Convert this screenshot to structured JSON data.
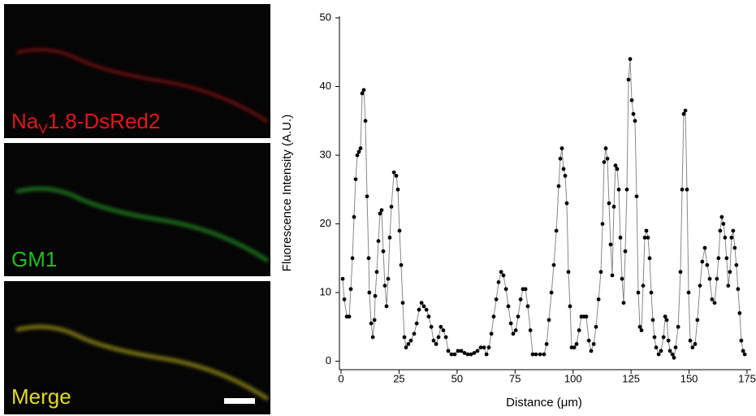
{
  "panels": [
    {
      "label_parts": [
        "Na",
        "V",
        "1.8-DsRed2"
      ],
      "color": "#e4161c"
    },
    {
      "label_parts": [
        "GM1"
      ],
      "color": "#1fbf1f"
    },
    {
      "label_parts": [
        "Merge"
      ],
      "color": "#e2dc1e"
    }
  ],
  "chart_data": {
    "type": "line",
    "x_label": "Distance (μm)",
    "y_label": "Fluorescence Intensity (A.U.)",
    "xlim": [
      0,
      175
    ],
    "ylim": [
      -1,
      50
    ],
    "xticks": [
      0,
      25,
      50,
      75,
      100,
      125,
      150,
      175
    ],
    "yticks": [
      0,
      10,
      20,
      30,
      40,
      50
    ],
    "line_color": "#888888",
    "marker_color": "#000000",
    "x": [
      0.7,
      1.4,
      2.5,
      3.5,
      4.2,
      4.9,
      5.6,
      6.3,
      7,
      7.7,
      8.4,
      9.1,
      9.8,
      10.5,
      11.2,
      11.9,
      12.2,
      13,
      13.7,
      14.4,
      14.7,
      15.4,
      16.1,
      16.8,
      17.5,
      18.2,
      18.9,
      19.6,
      20.3,
      21,
      21.7,
      22.8,
      23.8,
      24.5,
      25.2,
      25.9,
      26.6,
      27.3,
      28,
      29,
      30.1,
      31.5,
      32.6,
      33.6,
      34.7,
      35.7,
      36.8,
      37.8,
      38.9,
      39.9,
      41,
      42,
      43,
      44.1,
      45.2,
      46.2,
      47.6,
      49,
      50.4,
      51.8,
      53.2,
      54.6,
      56,
      57.4,
      58.8,
      60.2,
      61.6,
      62.7,
      63.7,
      64.8,
      65.8,
      66.9,
      67.9,
      69,
      70,
      71.1,
      72.1,
      73.2,
      74.2,
      75.3,
      76.3,
      77.4,
      78.4,
      79.5,
      80.5,
      81.6,
      82.6,
      84,
      85.8,
      87.5,
      88.6,
      89.6,
      90.7,
      91.7,
      92.8,
      93.8,
      94.5,
      95.2,
      95.9,
      96.6,
      97.3,
      98,
      98.7,
      99.4,
      100.5,
      101.5,
      102.6,
      103.6,
      104.7,
      105.7,
      106.8,
      107.8,
      108.9,
      109.9,
      111,
      112,
      112.7,
      113.4,
      114.1,
      114.8,
      115.5,
      116.2,
      116.9,
      117.6,
      118.3,
      119,
      119.7,
      120.4,
      121.1,
      121.8,
      122.5,
      123.2,
      123.9,
      124.6,
      125.3,
      126,
      126.7,
      127.4,
      128.1,
      128.8,
      129.5,
      130.2,
      130.9,
      131.6,
      132.3,
      133,
      133.7,
      134.4,
      135.1,
      135.8,
      136.9,
      137.9,
      139,
      139.7,
      140.4,
      141.1,
      141.8,
      142.8,
      143.5,
      144.2,
      145.3,
      146.3,
      147,
      147.7,
      148.4,
      149.1,
      149.8,
      150.5,
      151.5,
      152.6,
      153.6,
      154.7,
      155.7,
      156.8,
      157.8,
      158.9,
      159.9,
      161,
      162,
      162.7,
      163.4,
      164.1,
      164.8,
      165.5,
      166.2,
      166.9,
      167.6,
      168.3,
      169,
      169.7,
      170.4,
      171.1,
      171.8,
      172.5,
      173.3,
      174
    ],
    "values": [
      12,
      9,
      6.5,
      6.5,
      10.5,
      15,
      21,
      26.5,
      30,
      30.5,
      31,
      39,
      39.5,
      35,
      24,
      15,
      10,
      5.5,
      3.5,
      6,
      9.5,
      13,
      17.5,
      21.5,
      22,
      16,
      11,
      8,
      12,
      18,
      22.5,
      27.5,
      27,
      25,
      19,
      14,
      8.5,
      3.5,
      2,
      2.5,
      3,
      4,
      5.5,
      7.5,
      8.5,
      8,
      7.5,
      6.5,
      5,
      3,
      2.5,
      3.5,
      5,
      4.5,
      3.5,
      1.5,
      1,
      1,
      1.5,
      1.5,
      1.2,
      1,
      1,
      1.2,
      1.5,
      2,
      2,
      1,
      2,
      4,
      6.5,
      9,
      11.5,
      13,
      12.5,
      10.5,
      8,
      5.5,
      4,
      4.5,
      6.5,
      9,
      10.5,
      10.5,
      8,
      4.5,
      1,
      1,
      1,
      1,
      2.5,
      6,
      10,
      14,
      19,
      25.5,
      29.5,
      31,
      28,
      27,
      23,
      13,
      8,
      2,
      2,
      2.5,
      4.5,
      6.5,
      6.5,
      6.5,
      3,
      1.5,
      2.5,
      5,
      9,
      13,
      20,
      29,
      31,
      29.5,
      23,
      17,
      12.5,
      22.5,
      28.5,
      28,
      25,
      18,
      12,
      8.5,
      16,
      25,
      41,
      44,
      38,
      36,
      35,
      24,
      10,
      5,
      4.5,
      11,
      18,
      19,
      18,
      15,
      10,
      6,
      3.5,
      2,
      1,
      1.5,
      3.5,
      6.5,
      6,
      3,
      1.5,
      1,
      0.5,
      2,
      5,
      13,
      25,
      36,
      36.5,
      25,
      10,
      3,
      2,
      2.5,
      6,
      11,
      14.5,
      16.5,
      14,
      12,
      9,
      8.5,
      12,
      15,
      19,
      21,
      20,
      18,
      15,
      11,
      13,
      18,
      19,
      16.5,
      14,
      10.5,
      7,
      3,
      1.5,
      1
    ]
  }
}
